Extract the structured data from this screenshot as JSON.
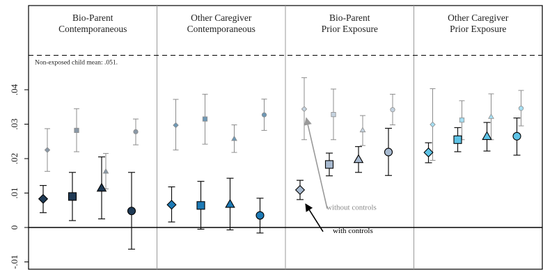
{
  "chart_data": {
    "type": "scatter",
    "title": "",
    "xlabel": "",
    "ylabel": "",
    "ylim": [
      -0.012,
      0.052
    ],
    "yticks": [
      -0.01,
      0,
      0.01,
      0.02,
      0.03,
      0.04
    ],
    "ytick_labels": [
      "-.01",
      "0",
      ".01",
      ".02",
      ".03",
      ".04"
    ],
    "reference_line": 0.05,
    "note": "Non-exposed child mean: .051.",
    "panels": [
      {
        "label_lines": [
          "Bio-Parent",
          "Contemporaneous"
        ],
        "color_controls": "#1f3a55",
        "color_nocontrols": "#8a98a6",
        "series": [
          {
            "shape": "diamond",
            "with_controls": {
              "est": 0.0083,
              "lo": 0.0043,
              "hi": 0.0122
            },
            "without_controls": {
              "est": 0.0225,
              "lo": 0.0163,
              "hi": 0.0287
            }
          },
          {
            "shape": "square",
            "with_controls": {
              "est": 0.009,
              "lo": 0.002,
              "hi": 0.016
            },
            "without_controls": {
              "est": 0.0282,
              "lo": 0.022,
              "hi": 0.0345
            }
          },
          {
            "shape": "triangle",
            "with_controls": {
              "est": 0.0115,
              "lo": 0.0025,
              "hi": 0.0205
            },
            "without_controls": {
              "est": 0.0163,
              "lo": 0.0112,
              "hi": 0.0215
            }
          },
          {
            "shape": "circle",
            "with_controls": {
              "est": 0.0048,
              "lo": -0.0063,
              "hi": 0.016
            },
            "without_controls": {
              "est": 0.0278,
              "lo": 0.024,
              "hi": 0.0315
            }
          }
        ]
      },
      {
        "label_lines": [
          "Other Caregiver",
          "Contemporaneous"
        ],
        "color_controls": "#1d7ab5",
        "color_nocontrols": "#6e98b5",
        "series": [
          {
            "shape": "diamond",
            "with_controls": {
              "est": 0.0066,
              "lo": 0.0016,
              "hi": 0.0118
            },
            "without_controls": {
              "est": 0.0297,
              "lo": 0.0225,
              "hi": 0.0372
            }
          },
          {
            "shape": "square",
            "with_controls": {
              "est": 0.0064,
              "lo": -0.0005,
              "hi": 0.0134
            },
            "without_controls": {
              "est": 0.0315,
              "lo": 0.0242,
              "hi": 0.0387
            }
          },
          {
            "shape": "triangle",
            "with_controls": {
              "est": 0.0068,
              "lo": -0.0007,
              "hi": 0.0143
            },
            "without_controls": {
              "est": 0.0258,
              "lo": 0.0218,
              "hi": 0.0298
            }
          },
          {
            "shape": "circle",
            "with_controls": {
              "est": 0.0035,
              "lo": -0.0016,
              "hi": 0.0085
            },
            "without_controls": {
              "est": 0.0327,
              "lo": 0.0282,
              "hi": 0.0373
            }
          }
        ]
      },
      {
        "label_lines": [
          "Bio-Parent",
          "Prior Exposure"
        ],
        "color_controls": "#a7b9cf",
        "color_nocontrols": "#c5d3e0",
        "series": [
          {
            "shape": "diamond",
            "with_controls": {
              "est": 0.0109,
              "lo": 0.0081,
              "hi": 0.0137
            },
            "without_controls": {
              "est": 0.0344,
              "lo": 0.0255,
              "hi": 0.0435
            }
          },
          {
            "shape": "square",
            "with_controls": {
              "est": 0.0183,
              "lo": 0.015,
              "hi": 0.0216
            },
            "without_controls": {
              "est": 0.0328,
              "lo": 0.0255,
              "hi": 0.0402
            }
          },
          {
            "shape": "triangle",
            "with_controls": {
              "est": 0.0198,
              "lo": 0.016,
              "hi": 0.0235
            },
            "without_controls": {
              "est": 0.0283,
              "lo": 0.0238,
              "hi": 0.0325
            }
          },
          {
            "shape": "circle",
            "with_controls": {
              "est": 0.0219,
              "lo": 0.0151,
              "hi": 0.0288
            },
            "without_controls": {
              "est": 0.0342,
              "lo": 0.0298,
              "hi": 0.0387
            }
          }
        ]
      },
      {
        "label_lines": [
          "Other Caregiver",
          "Prior Exposure"
        ],
        "color_controls": "#5ec3e6",
        "color_nocontrols": "#a6def2",
        "series": [
          {
            "shape": "diamond",
            "with_controls": {
              "est": 0.0218,
              "lo": 0.0188,
              "hi": 0.0246
            },
            "without_controls": {
              "est": 0.0299,
              "lo": 0.0195,
              "hi": 0.0403
            }
          },
          {
            "shape": "square",
            "with_controls": {
              "est": 0.0255,
              "lo": 0.022,
              "hi": 0.029
            },
            "without_controls": {
              "est": 0.0312,
              "lo": 0.0255,
              "hi": 0.0368
            }
          },
          {
            "shape": "triangle",
            "with_controls": {
              "est": 0.0265,
              "lo": 0.0222,
              "hi": 0.0305
            },
            "without_controls": {
              "est": 0.0322,
              "lo": 0.0255,
              "hi": 0.0388
            }
          },
          {
            "shape": "circle",
            "with_controls": {
              "est": 0.0265,
              "lo": 0.021,
              "hi": 0.0318
            },
            "without_controls": {
              "est": 0.0346,
              "lo": 0.0295,
              "hi": 0.0398
            }
          }
        ]
      }
    ],
    "annotations": [
      {
        "text": "without controls",
        "color": "#888888"
      },
      {
        "text": "with controls",
        "color": "#000000"
      }
    ]
  }
}
